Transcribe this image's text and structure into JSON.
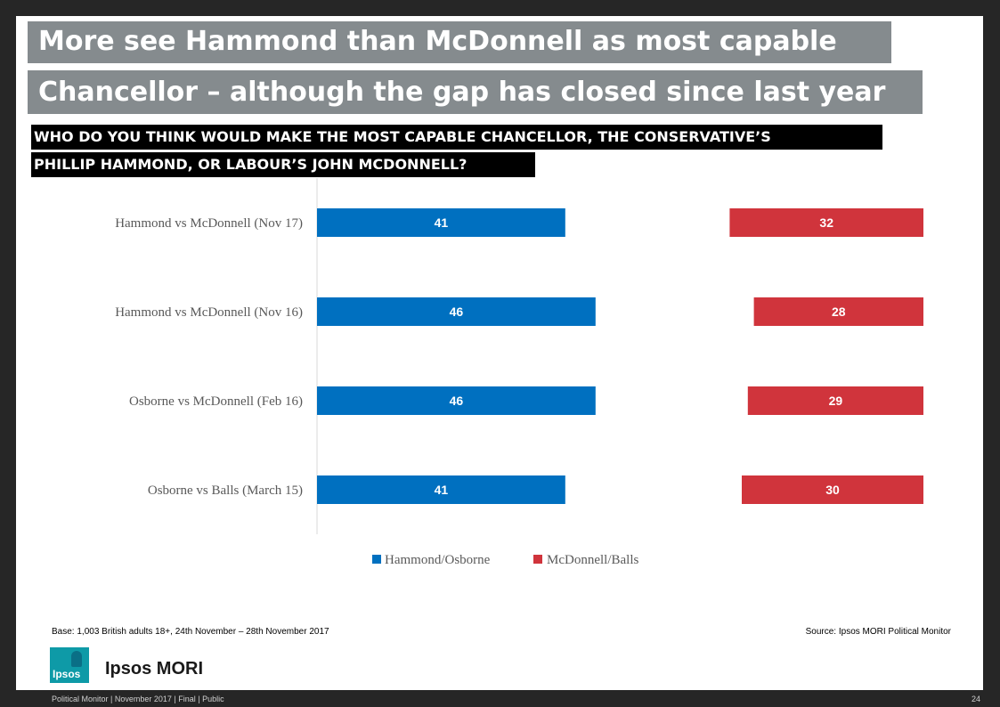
{
  "title": {
    "line1": "More see Hammond than McDonnell as most capable",
    "line2": "Chancellor – although the gap has closed since last year"
  },
  "question": {
    "line1": "WHO DO YOU THINK WOULD MAKE THE MOST CAPABLE CHANCELLOR, THE CONSERVATIVE’S",
    "line2": "PHILLIP HAMMOND, OR LABOUR’S JOHN MCDONNELL?"
  },
  "chart_data": {
    "type": "bar",
    "orientation": "horizontal",
    "categories": [
      "Hammond vs McDonnell (Nov 17)",
      "Hammond vs McDonnell (Nov 16)",
      "Osborne vs McDonnell (Feb 16)",
      "Osborne vs Balls (March 15)"
    ],
    "series": [
      {
        "name": "Hammond/Osborne",
        "color": "#0070c0",
        "values": [
          41,
          46,
          46,
          41
        ]
      },
      {
        "name": "McDonnell/Balls",
        "color": "#d0343c",
        "values": [
          32,
          28,
          29,
          30
        ]
      }
    ],
    "legend_position": "bottom",
    "grid": false
  },
  "footnotes": {
    "base": "Base: 1,003 British adults 18+, 24th November – 28th November 2017",
    "source": "Source: Ipsos MORI Political Monitor"
  },
  "brand": {
    "logo_text": "Ipsos",
    "name": "Ipsos MORI"
  },
  "footer": {
    "text": "Political Monitor | November 2017 | Final | Public",
    "page_number": "24"
  }
}
